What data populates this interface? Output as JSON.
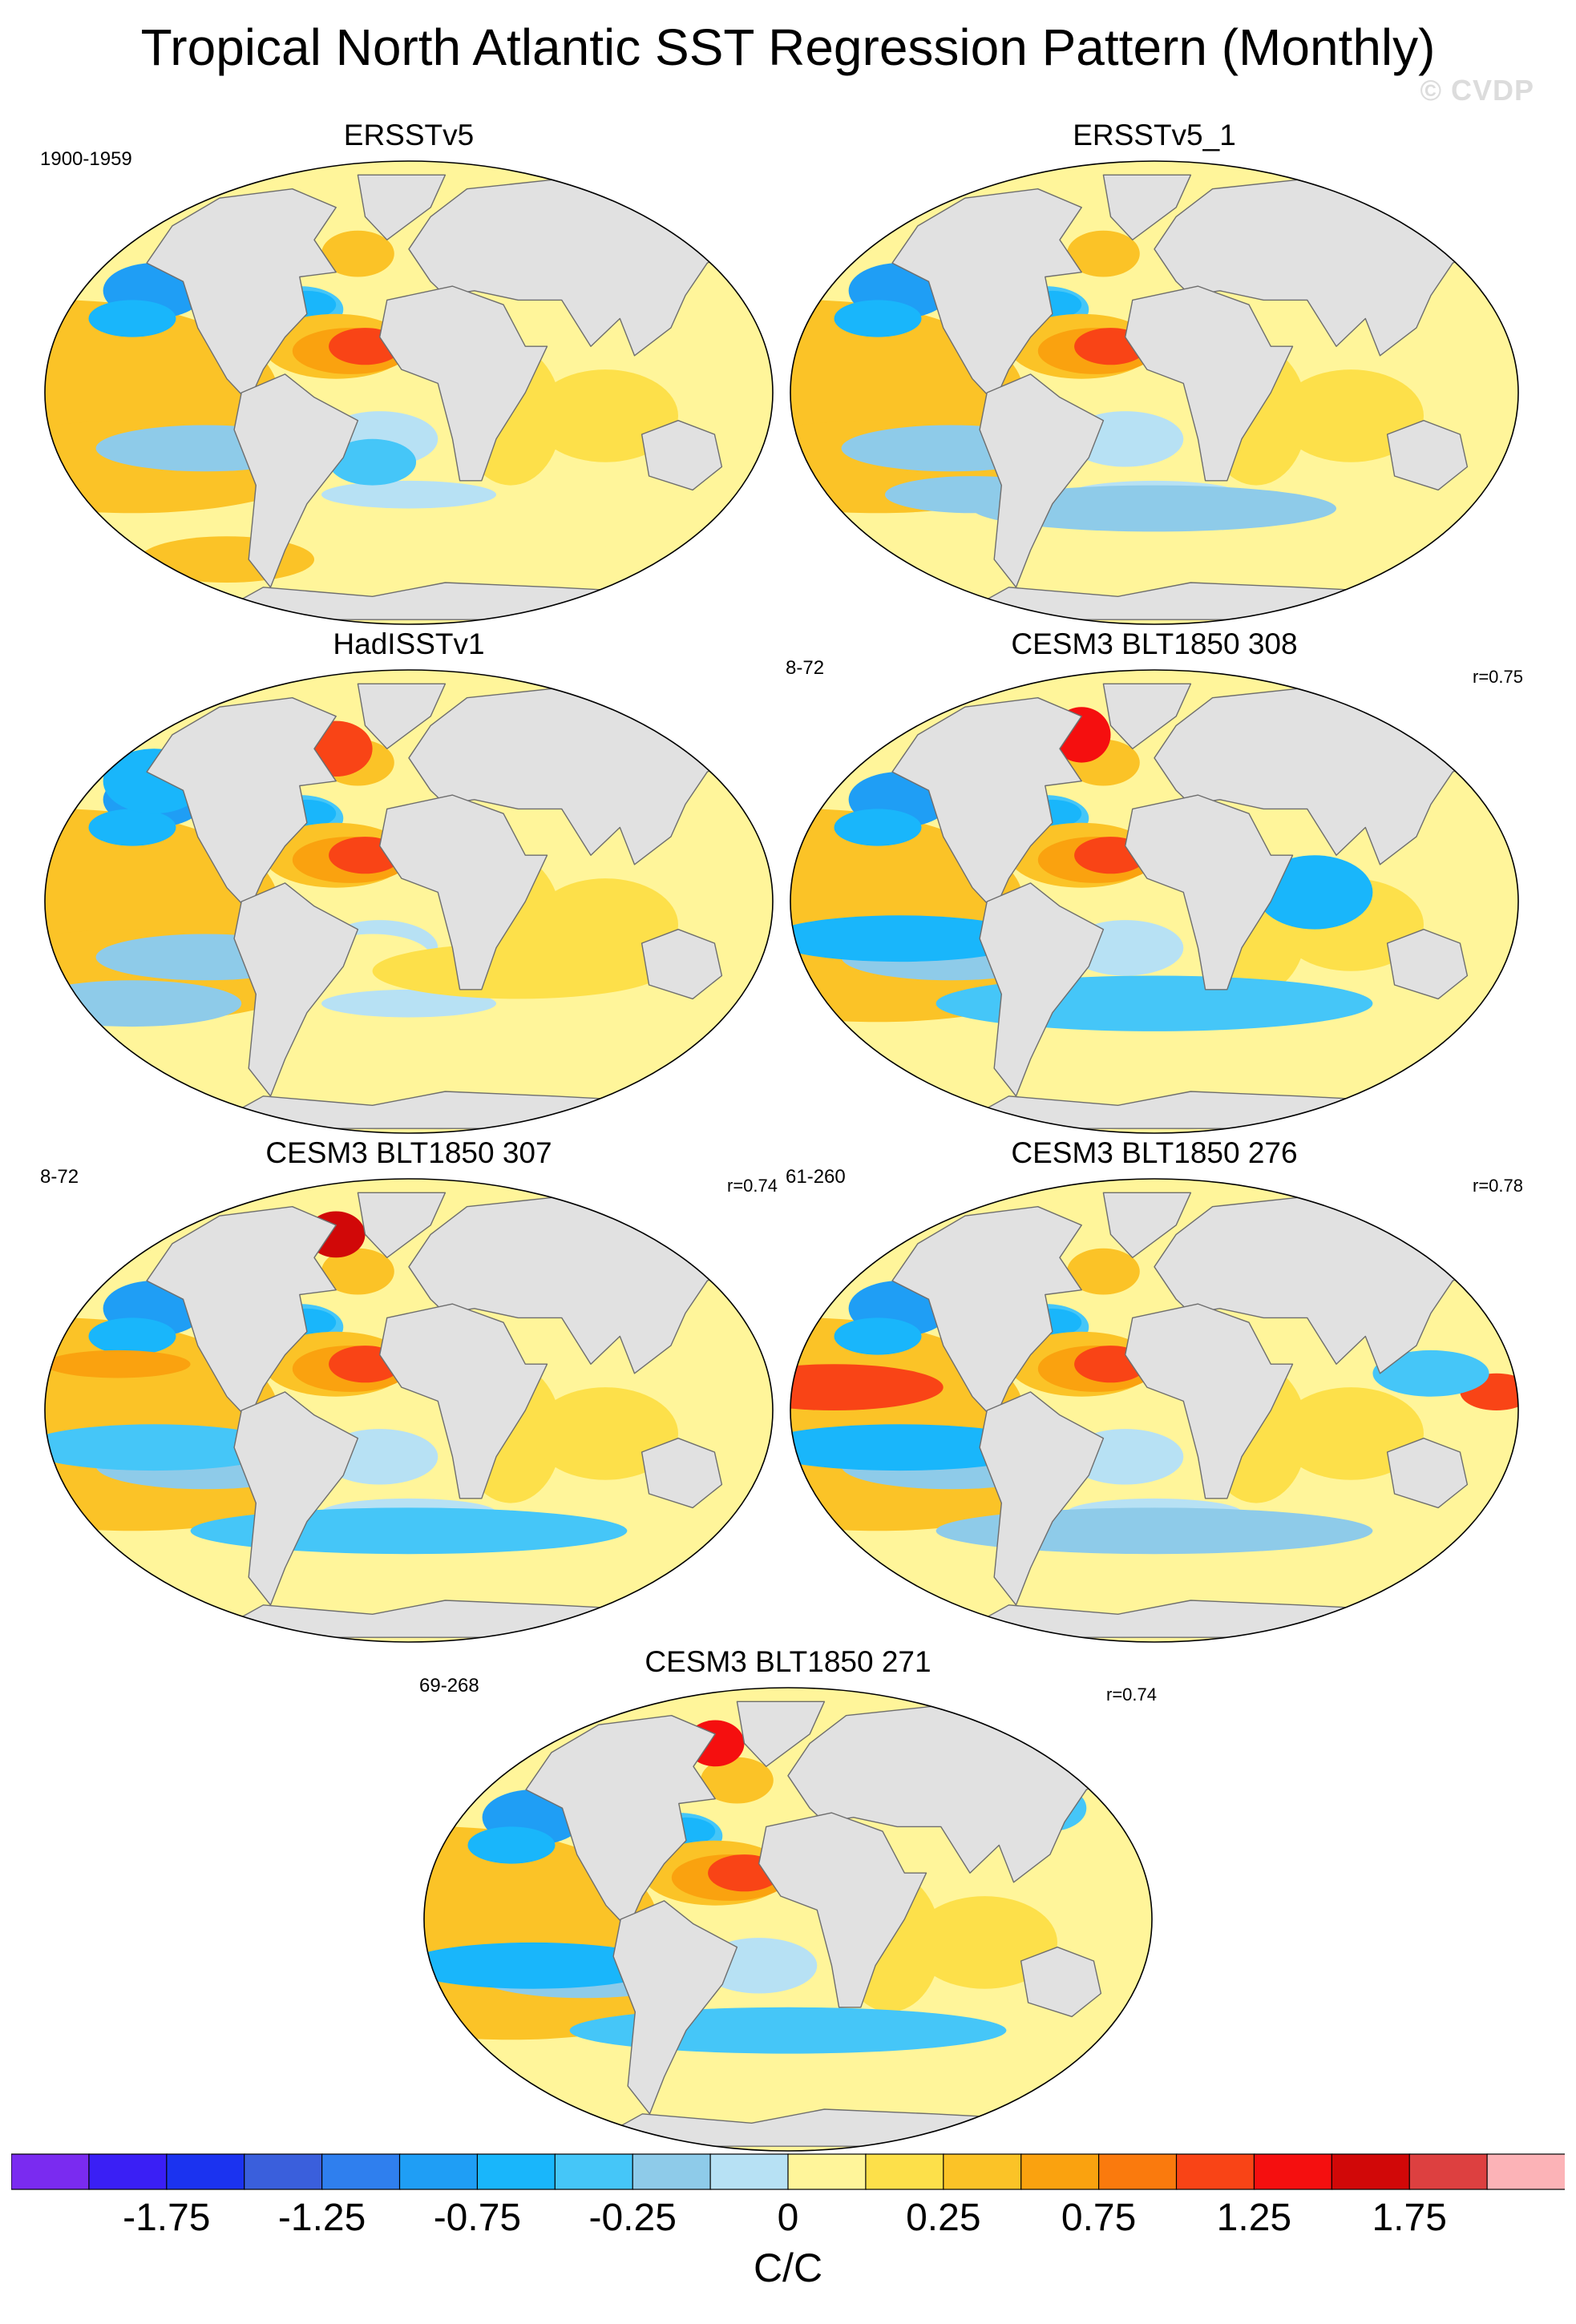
{
  "chart_data": {
    "type": "heatmap",
    "title": "Tropical North Atlantic SST Regression Pattern (Monthly)",
    "watermark": "© CVDP",
    "units": "C/C",
    "colorbar": {
      "colors": [
        "#7a2bf0",
        "#3a1ff5",
        "#1b33f0",
        "#3a5fdc",
        "#2f7fee",
        "#1f9ef5",
        "#19b6fb",
        "#45c6f8",
        "#8ecbe9",
        "#b7e1f4",
        "#fff59a",
        "#fde04a",
        "#fbc327",
        "#faa20f",
        "#fa7a0d",
        "#f94416",
        "#f50f0f",
        "#d10808",
        "#dd4040",
        "#fcb3b7"
      ],
      "tick_labels": [
        "-1.75",
        "-1.25",
        "-0.75",
        "-0.25",
        "0",
        "0.25",
        "0.75",
        "1.25",
        "1.75"
      ]
    },
    "panels": [
      {
        "name": "ERSSTv5",
        "period": "1900-1959",
        "r": ""
      },
      {
        "name": "ERSSTv5_1",
        "period": "",
        "r": ""
      },
      {
        "name": "HadISSTv1",
        "period": "",
        "r": ""
      },
      {
        "name": "CESM3 BLT1850 308",
        "period": "8-72",
        "r": "r=0.75"
      },
      {
        "name": "CESM3 BLT1850 307",
        "period": "8-72",
        "r": "r=0.74"
      },
      {
        "name": "CESM3 BLT1850 276",
        "period": "61-260",
        "r": "r=0.78"
      },
      {
        "name": "CESM3 BLT1850 271",
        "period": "69-268",
        "r": "r=0.74"
      }
    ]
  }
}
